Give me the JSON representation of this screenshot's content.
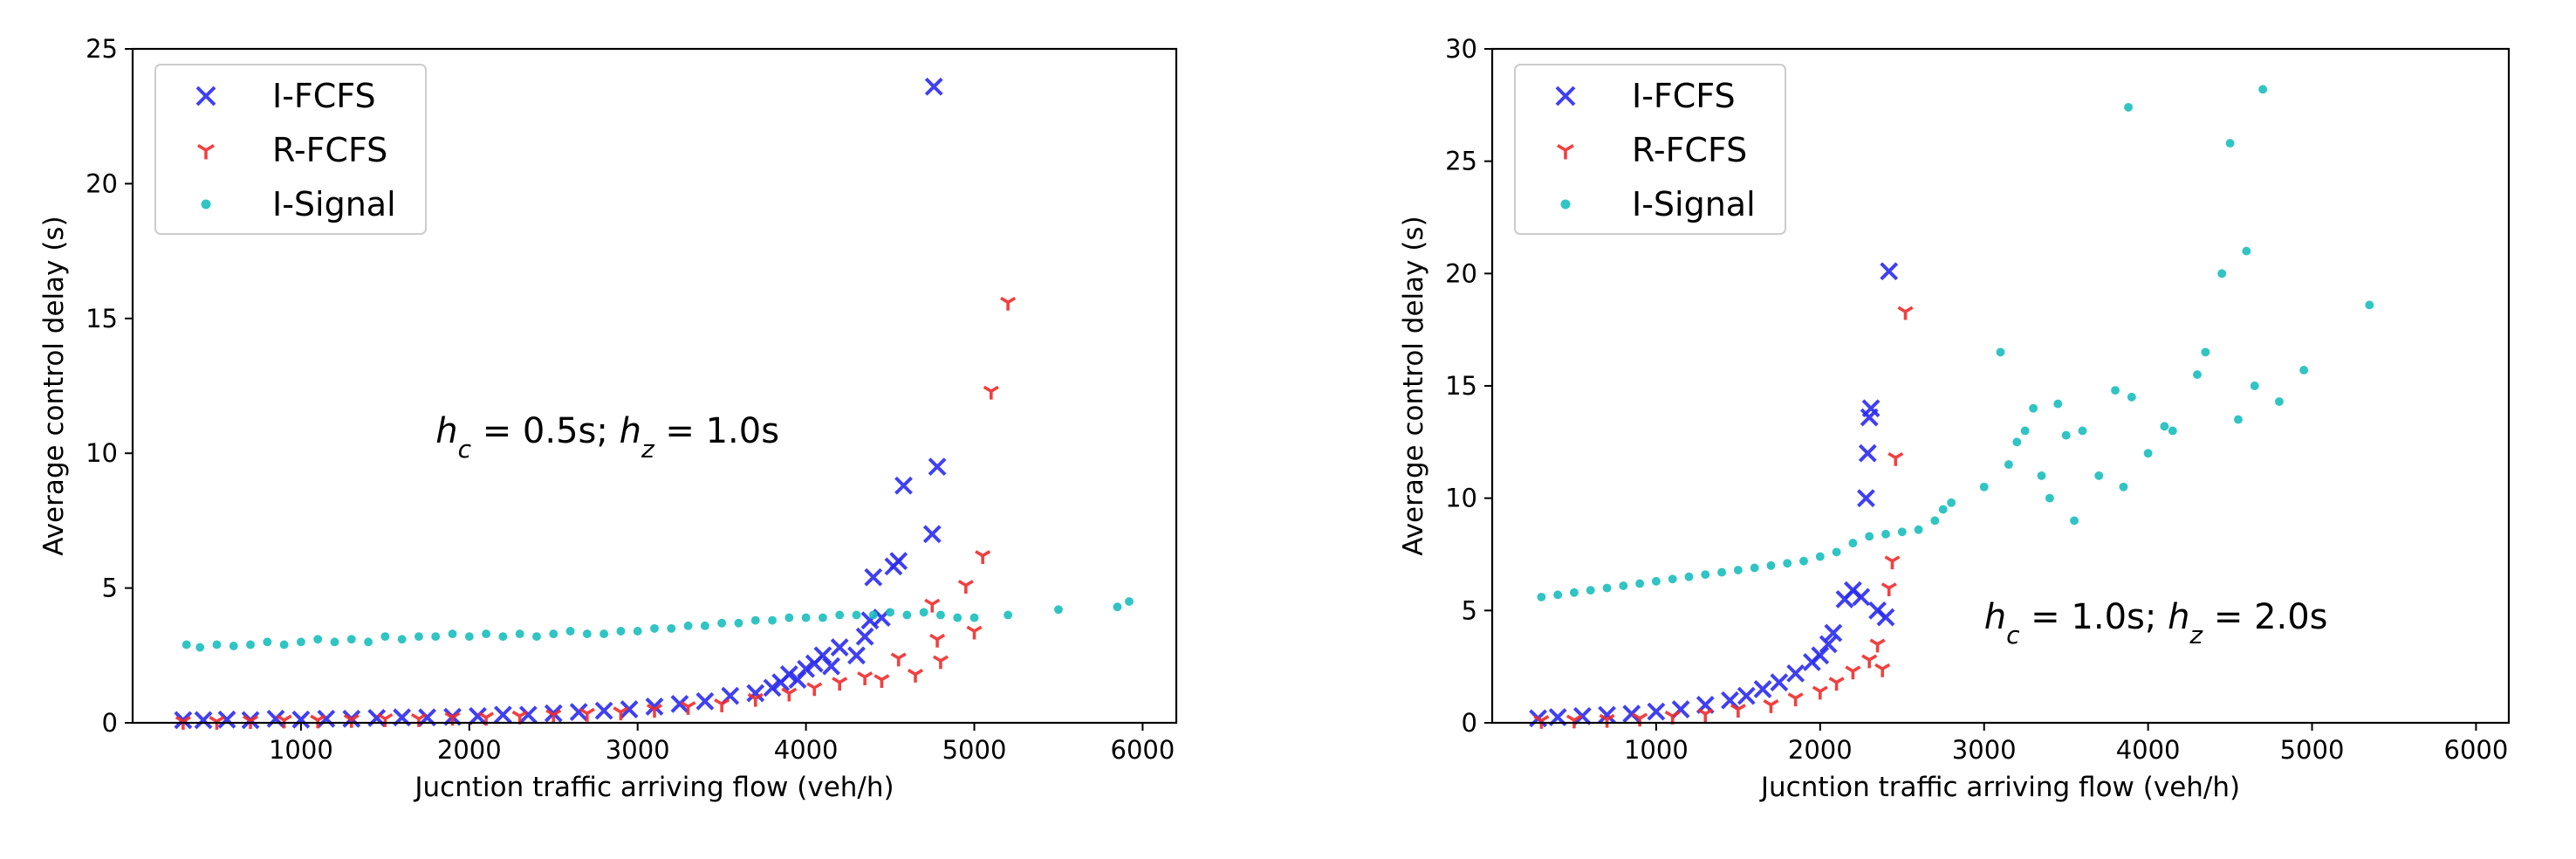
{
  "chart_data": [
    {
      "type": "scatter",
      "title": "",
      "xlabel": "Jucntion traffic arriving flow (veh/h)",
      "ylabel": "Average control delay (s)",
      "xlim": [
        0,
        6200
      ],
      "ylim": [
        0,
        25
      ],
      "xticks": [
        1000,
        2000,
        3000,
        4000,
        5000,
        6000
      ],
      "yticks": [
        0,
        5,
        10,
        15,
        20,
        25
      ],
      "x_tick_labels": [
        "1000",
        "2000",
        "3000",
        "4000",
        "5000",
        "6000"
      ],
      "y_tick_labels": [
        "0",
        "5",
        "10",
        "15",
        "20",
        "25"
      ],
      "legend_position": "top-left",
      "annotation": {
        "parts": [
          "h",
          "c",
          " = 0.5s; ",
          "h",
          "z",
          " = 1.0s"
        ],
        "x": 1800,
        "y": 10.4
      },
      "series": [
        {
          "name": "I-FCFS",
          "marker": "x",
          "color": "#2b2bf0",
          "points": [
            [
              300,
              0.1
            ],
            [
              420,
              0.1
            ],
            [
              560,
              0.12
            ],
            [
              700,
              0.1
            ],
            [
              850,
              0.15
            ],
            [
              1000,
              0.12
            ],
            [
              1150,
              0.15
            ],
            [
              1300,
              0.15
            ],
            [
              1450,
              0.18
            ],
            [
              1600,
              0.2
            ],
            [
              1750,
              0.2
            ],
            [
              1900,
              0.22
            ],
            [
              2050,
              0.25
            ],
            [
              2200,
              0.3
            ],
            [
              2350,
              0.3
            ],
            [
              2500,
              0.35
            ],
            [
              2650,
              0.4
            ],
            [
              2800,
              0.45
            ],
            [
              2950,
              0.5
            ],
            [
              3100,
              0.6
            ],
            [
              3250,
              0.7
            ],
            [
              3400,
              0.8
            ],
            [
              3550,
              1.0
            ],
            [
              3700,
              1.1
            ],
            [
              3800,
              1.3
            ],
            [
              3850,
              1.5
            ],
            [
              3900,
              1.8
            ],
            [
              3950,
              1.6
            ],
            [
              4000,
              2.0
            ],
            [
              4050,
              2.2
            ],
            [
              4100,
              2.5
            ],
            [
              4150,
              2.1
            ],
            [
              4200,
              2.8
            ],
            [
              4300,
              2.5
            ],
            [
              4350,
              3.2
            ],
            [
              4380,
              3.8
            ],
            [
              4400,
              5.4
            ],
            [
              4450,
              3.9
            ],
            [
              4520,
              5.8
            ],
            [
              4550,
              6.0
            ],
            [
              4580,
              8.8
            ],
            [
              4750,
              7.0
            ],
            [
              4780,
              9.5
            ],
            [
              4760,
              23.6
            ]
          ]
        },
        {
          "name": "R-FCFS",
          "marker": "tri_down",
          "color": "#f02b2b",
          "points": [
            [
              300,
              0.05
            ],
            [
              500,
              0.05
            ],
            [
              700,
              0.08
            ],
            [
              900,
              0.1
            ],
            [
              1100,
              0.1
            ],
            [
              1300,
              0.12
            ],
            [
              1500,
              0.15
            ],
            [
              1700,
              0.15
            ],
            [
              1900,
              0.2
            ],
            [
              2100,
              0.2
            ],
            [
              2300,
              0.25
            ],
            [
              2500,
              0.3
            ],
            [
              2700,
              0.35
            ],
            [
              2900,
              0.4
            ],
            [
              3100,
              0.5
            ],
            [
              3300,
              0.6
            ],
            [
              3500,
              0.7
            ],
            [
              3700,
              0.9
            ],
            [
              3900,
              1.1
            ],
            [
              4050,
              1.3
            ],
            [
              4200,
              1.5
            ],
            [
              4350,
              1.7
            ],
            [
              4450,
              1.6
            ],
            [
              4550,
              2.4
            ],
            [
              4650,
              1.8
            ],
            [
              4750,
              4.4
            ],
            [
              4780,
              3.1
            ],
            [
              4800,
              2.3
            ],
            [
              4950,
              5.1
            ],
            [
              5000,
              3.4
            ],
            [
              5050,
              6.2
            ],
            [
              5100,
              12.3
            ],
            [
              5200,
              15.6
            ]
          ]
        },
        {
          "name": "I-Signal",
          "marker": "o",
          "color": "#1fbfbf",
          "points": [
            [
              320,
              2.9
            ],
            [
              400,
              2.8
            ],
            [
              500,
              2.9
            ],
            [
              600,
              2.85
            ],
            [
              700,
              2.9
            ],
            [
              800,
              3.0
            ],
            [
              900,
              2.9
            ],
            [
              1000,
              3.0
            ],
            [
              1100,
              3.1
            ],
            [
              1200,
              3.0
            ],
            [
              1300,
              3.1
            ],
            [
              1400,
              3.0
            ],
            [
              1500,
              3.2
            ],
            [
              1600,
              3.1
            ],
            [
              1700,
              3.2
            ],
            [
              1800,
              3.2
            ],
            [
              1900,
              3.3
            ],
            [
              2000,
              3.2
            ],
            [
              2100,
              3.3
            ],
            [
              2200,
              3.2
            ],
            [
              2300,
              3.3
            ],
            [
              2400,
              3.2
            ],
            [
              2500,
              3.3
            ],
            [
              2600,
              3.4
            ],
            [
              2700,
              3.3
            ],
            [
              2800,
              3.3
            ],
            [
              2900,
              3.4
            ],
            [
              3000,
              3.4
            ],
            [
              3100,
              3.5
            ],
            [
              3200,
              3.5
            ],
            [
              3300,
              3.6
            ],
            [
              3400,
              3.6
            ],
            [
              3500,
              3.7
            ],
            [
              3600,
              3.7
            ],
            [
              3700,
              3.8
            ],
            [
              3800,
              3.8
            ],
            [
              3900,
              3.9
            ],
            [
              4000,
              3.9
            ],
            [
              4100,
              3.9
            ],
            [
              4200,
              4.0
            ],
            [
              4300,
              4.0
            ],
            [
              4400,
              4.0
            ],
            [
              4500,
              4.1
            ],
            [
              4600,
              4.0
            ],
            [
              4700,
              4.1
            ],
            [
              4800,
              4.0
            ],
            [
              4900,
              3.9
            ],
            [
              5000,
              3.9
            ],
            [
              5200,
              4.0
            ],
            [
              5500,
              4.2
            ],
            [
              5850,
              4.3
            ],
            [
              5920,
              4.5
            ]
          ]
        }
      ]
    },
    {
      "type": "scatter",
      "title": "",
      "xlabel": "Jucntion traffic arriving flow (veh/h)",
      "ylabel": "Average control delay (s)",
      "xlim": [
        0,
        6200
      ],
      "ylim": [
        0,
        30
      ],
      "xticks": [
        1000,
        2000,
        3000,
        4000,
        5000,
        6000
      ],
      "yticks": [
        0,
        5,
        10,
        15,
        20,
        25,
        30
      ],
      "x_tick_labels": [
        "1000",
        "2000",
        "3000",
        "4000",
        "5000",
        "6000"
      ],
      "y_tick_labels": [
        "0",
        "5",
        "10",
        "15",
        "20",
        "25",
        "30"
      ],
      "legend_position": "top-left",
      "annotation": {
        "parts": [
          "h",
          "c",
          " = 1.0s; ",
          "h",
          "z",
          " = 2.0s"
        ],
        "x": 3000,
        "y": 4.2
      },
      "series": [
        {
          "name": "I-FCFS",
          "marker": "x",
          "color": "#2b2bf0",
          "points": [
            [
              280,
              0.2
            ],
            [
              400,
              0.25
            ],
            [
              550,
              0.3
            ],
            [
              700,
              0.35
            ],
            [
              850,
              0.4
            ],
            [
              1000,
              0.5
            ],
            [
              1150,
              0.6
            ],
            [
              1300,
              0.8
            ],
            [
              1450,
              1.0
            ],
            [
              1550,
              1.2
            ],
            [
              1650,
              1.5
            ],
            [
              1750,
              1.8
            ],
            [
              1850,
              2.2
            ],
            [
              1950,
              2.7
            ],
            [
              2000,
              3.0
            ],
            [
              2050,
              3.5
            ],
            [
              2080,
              4.0
            ],
            [
              2150,
              5.5
            ],
            [
              2200,
              5.9
            ],
            [
              2250,
              5.6
            ],
            [
              2280,
              10.0
            ],
            [
              2290,
              12.0
            ],
            [
              2300,
              13.6
            ],
            [
              2310,
              14.0
            ],
            [
              2350,
              5.0
            ],
            [
              2400,
              4.7
            ],
            [
              2420,
              20.1
            ]
          ]
        },
        {
          "name": "R-FCFS",
          "marker": "tri_down",
          "color": "#f02b2b",
          "points": [
            [
              300,
              0.1
            ],
            [
              500,
              0.12
            ],
            [
              700,
              0.15
            ],
            [
              900,
              0.2
            ],
            [
              1100,
              0.3
            ],
            [
              1300,
              0.4
            ],
            [
              1500,
              0.6
            ],
            [
              1700,
              0.8
            ],
            [
              1850,
              1.1
            ],
            [
              2000,
              1.4
            ],
            [
              2100,
              1.8
            ],
            [
              2200,
              2.3
            ],
            [
              2300,
              2.8
            ],
            [
              2350,
              3.5
            ],
            [
              2380,
              2.4
            ],
            [
              2420,
              6.0
            ],
            [
              2440,
              7.2
            ],
            [
              2460,
              11.8
            ],
            [
              2520,
              18.3
            ]
          ]
        },
        {
          "name": "I-Signal",
          "marker": "o",
          "color": "#1fbfbf",
          "points": [
            [
              300,
              5.6
            ],
            [
              400,
              5.7
            ],
            [
              500,
              5.8
            ],
            [
              600,
              5.9
            ],
            [
              700,
              6.0
            ],
            [
              800,
              6.1
            ],
            [
              900,
              6.2
            ],
            [
              1000,
              6.3
            ],
            [
              1100,
              6.4
            ],
            [
              1200,
              6.5
            ],
            [
              1300,
              6.6
            ],
            [
              1400,
              6.7
            ],
            [
              1500,
              6.8
            ],
            [
              1600,
              6.9
            ],
            [
              1700,
              7.0
            ],
            [
              1800,
              7.1
            ],
            [
              1900,
              7.2
            ],
            [
              2000,
              7.4
            ],
            [
              2100,
              7.6
            ],
            [
              2200,
              8.0
            ],
            [
              2300,
              8.3
            ],
            [
              2400,
              8.4
            ],
            [
              2500,
              8.5
            ],
            [
              2600,
              8.6
            ],
            [
              2700,
              9.0
            ],
            [
              2750,
              9.5
            ],
            [
              2800,
              9.8
            ],
            [
              3000,
              10.5
            ],
            [
              3100,
              16.5
            ],
            [
              3150,
              11.5
            ],
            [
              3200,
              12.5
            ],
            [
              3250,
              13.0
            ],
            [
              3300,
              14.0
            ],
            [
              3350,
              11.0
            ],
            [
              3400,
              10.0
            ],
            [
              3450,
              14.2
            ],
            [
              3500,
              12.8
            ],
            [
              3550,
              9.0
            ],
            [
              3600,
              13.0
            ],
            [
              3700,
              11.0
            ],
            [
              3800,
              14.8
            ],
            [
              3850,
              10.5
            ],
            [
              3880,
              27.4
            ],
            [
              3900,
              14.5
            ],
            [
              4000,
              12.0
            ],
            [
              4100,
              13.2
            ],
            [
              4150,
              13.0
            ],
            [
              4300,
              15.5
            ],
            [
              4350,
              16.5
            ],
            [
              4450,
              20.0
            ],
            [
              4500,
              25.8
            ],
            [
              4550,
              13.5
            ],
            [
              4600,
              21.0
            ],
            [
              4650,
              15.0
            ],
            [
              4700,
              28.2
            ],
            [
              4800,
              14.3
            ],
            [
              4950,
              15.7
            ],
            [
              5350,
              18.6
            ]
          ]
        }
      ]
    }
  ]
}
